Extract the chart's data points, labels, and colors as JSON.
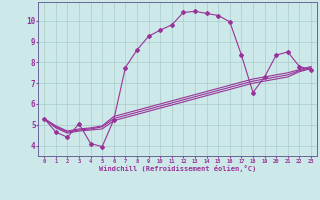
{
  "bg_color": "#cce8e8",
  "grid_color": "#aacccc",
  "line_color": "#993399",
  "xlabel": "Windchill (Refroidissement éolien,°C)",
  "xlim": [
    -0.5,
    23.5
  ],
  "ylim": [
    3.5,
    10.9
  ],
  "yticks": [
    4,
    5,
    6,
    7,
    8,
    9,
    10
  ],
  "xticks": [
    0,
    1,
    2,
    3,
    4,
    5,
    6,
    7,
    8,
    9,
    10,
    11,
    12,
    13,
    14,
    15,
    16,
    17,
    18,
    19,
    20,
    21,
    22,
    23
  ],
  "series1_x": [
    0,
    1,
    2,
    3,
    4,
    5,
    6,
    7,
    8,
    9,
    10,
    11,
    12,
    13,
    14,
    15,
    16,
    17,
    18,
    19,
    20,
    21,
    22,
    23
  ],
  "series1_y": [
    5.3,
    4.65,
    4.4,
    5.05,
    4.1,
    3.95,
    5.25,
    7.75,
    8.6,
    9.25,
    9.55,
    9.8,
    10.4,
    10.45,
    10.35,
    10.25,
    9.95,
    8.35,
    6.55,
    7.3,
    8.35,
    8.5,
    7.8,
    7.65
  ],
  "series2_x": [
    0,
    1,
    2,
    3,
    4,
    5,
    6,
    7,
    8,
    9,
    10,
    11,
    12,
    13,
    14,
    15,
    16,
    17,
    18,
    19,
    20,
    21,
    22,
    23
  ],
  "series2_y": [
    5.3,
    4.85,
    4.6,
    4.7,
    4.75,
    4.8,
    5.2,
    5.35,
    5.5,
    5.65,
    5.8,
    5.95,
    6.1,
    6.25,
    6.4,
    6.55,
    6.7,
    6.85,
    7.0,
    7.1,
    7.2,
    7.3,
    7.55,
    7.7
  ],
  "series3_x": [
    0,
    1,
    2,
    3,
    4,
    5,
    6,
    7,
    8,
    9,
    10,
    11,
    12,
    13,
    14,
    15,
    16,
    17,
    18,
    19,
    20,
    21,
    22,
    23
  ],
  "series3_y": [
    5.3,
    4.9,
    4.65,
    4.75,
    4.8,
    4.9,
    5.3,
    5.45,
    5.6,
    5.75,
    5.9,
    6.05,
    6.2,
    6.35,
    6.5,
    6.65,
    6.8,
    6.95,
    7.1,
    7.2,
    7.3,
    7.4,
    7.6,
    7.75
  ],
  "series4_x": [
    0,
    1,
    2,
    3,
    4,
    5,
    6,
    7,
    8,
    9,
    10,
    11,
    12,
    13,
    14,
    15,
    16,
    17,
    18,
    19,
    20,
    21,
    22,
    23
  ],
  "series4_y": [
    5.3,
    4.95,
    4.7,
    4.8,
    4.85,
    4.95,
    5.4,
    5.55,
    5.7,
    5.85,
    6.0,
    6.15,
    6.3,
    6.45,
    6.6,
    6.75,
    6.9,
    7.05,
    7.2,
    7.3,
    7.4,
    7.5,
    7.65,
    7.8
  ]
}
